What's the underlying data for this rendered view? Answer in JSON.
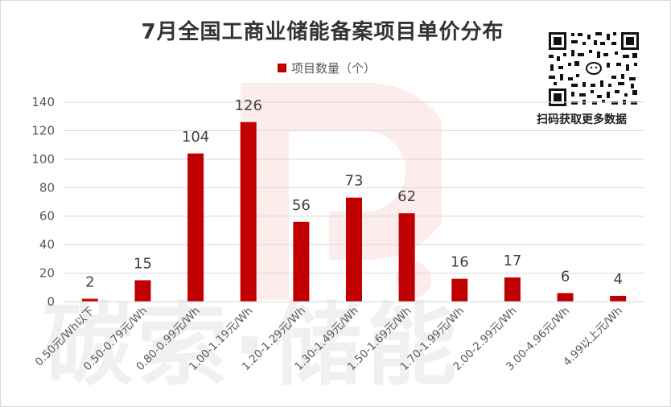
{
  "title": "7月全国工商业储能备案项目单价分布",
  "legend": {
    "label": "项目数量（个）"
  },
  "watermark": {
    "text": "碳索·储能"
  },
  "qr": {
    "caption": "扫码获取更多数据"
  },
  "colors": {
    "bar": "#c00000",
    "grid": "#d9d9d9",
    "axis_text": "#595959"
  },
  "chart_data": {
    "type": "bar",
    "title": "7月全国工商业储能备案项目单价分布",
    "xlabel": "",
    "ylabel": "",
    "ylim": [
      0,
      140
    ],
    "yticks": [
      0,
      20,
      40,
      60,
      80,
      100,
      120,
      140
    ],
    "grid": true,
    "legend_position": "top",
    "categories": [
      "0.50元/Wh以下",
      "0.50-0.79元/Wh",
      "0.80-0.99元/Wh",
      "1.00-1.19元/Wh",
      "1.20-1.29元/Wh",
      "1.30-1.49元/Wh",
      "1.50-1.69元/Wh",
      "1.70-1.99元/Wh",
      "2.00-2.99元/Wh",
      "3.00-4.96元/Wh",
      "4.99以上元/Wh"
    ],
    "series": [
      {
        "name": "项目数量（个）",
        "values": [
          2,
          15,
          104,
          126,
          56,
          73,
          62,
          16,
          17,
          6,
          4
        ]
      }
    ]
  }
}
